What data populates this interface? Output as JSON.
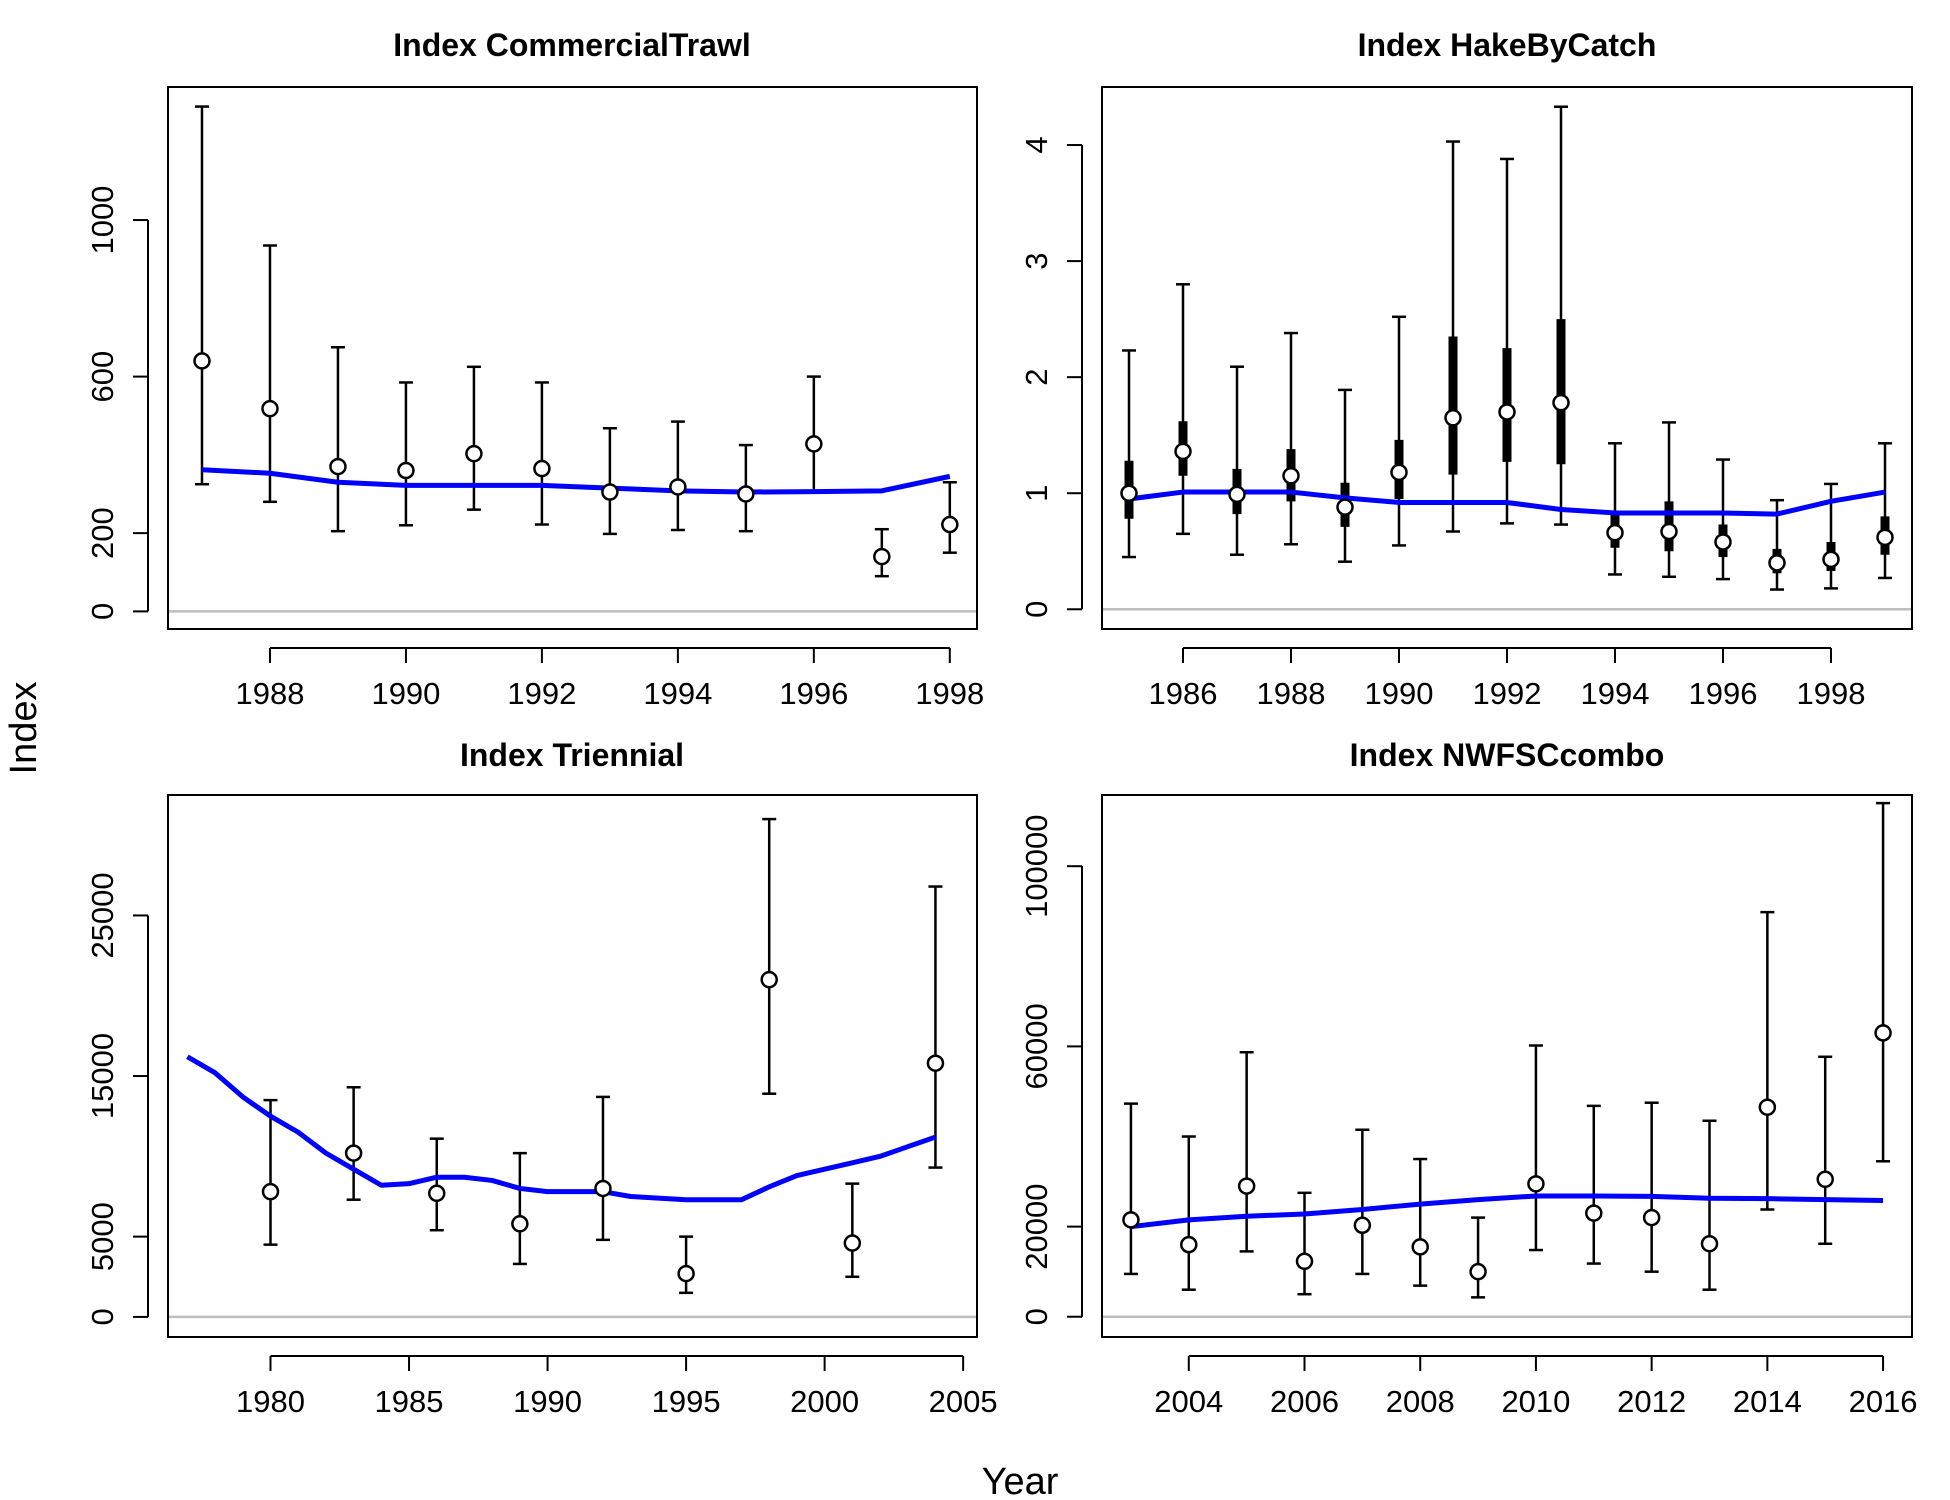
{
  "figure": {
    "ylabel": "Index",
    "xlabel": "Year"
  },
  "chart_data": [
    {
      "type": "scatter",
      "title": "Index CommercialTrawl",
      "xticks": [
        1988,
        1990,
        1992,
        1994,
        1996,
        1998
      ],
      "yticks": [
        0,
        200,
        600,
        1000
      ],
      "xlim": [
        1986.5,
        1998.4
      ],
      "ylim": [
        -45,
        1340
      ],
      "observed": {
        "x": [
          1987,
          1988,
          1989,
          1990,
          1991,
          1992,
          1993,
          1994,
          1995,
          1996,
          1997,
          1998
        ],
        "y": [
          640,
          518,
          370,
          360,
          403,
          365,
          305,
          318,
          300,
          428,
          140,
          222
        ],
        "lower": [
          325,
          280,
          205,
          220,
          260,
          222,
          198,
          208,
          205,
          305,
          90,
          150
        ],
        "upper": [
          1290,
          935,
          675,
          585,
          625,
          585,
          468,
          485,
          425,
          600,
          210,
          330
        ]
      },
      "expected": {
        "x": [
          1987,
          1988,
          1989,
          1990,
          1991,
          1992,
          1993,
          1994,
          1995,
          1996,
          1997,
          1998
        ],
        "y": [
          362,
          353,
          330,
          322,
          322,
          322,
          315,
          308,
          305,
          306,
          308,
          345
        ]
      },
      "colors": {
        "expected": "#0000ff",
        "zero_line": "#bebebe"
      }
    },
    {
      "type": "scatter",
      "title": "Index HakeByCatch",
      "xticks": [
        1986,
        1988,
        1990,
        1992,
        1994,
        1996,
        1998
      ],
      "yticks": [
        0,
        1,
        2,
        3,
        4
      ],
      "xlim": [
        1984.5,
        1999.5
      ],
      "ylim": [
        -0.17,
        4.5
      ],
      "observed": {
        "x": [
          1985,
          1986,
          1987,
          1988,
          1989,
          1990,
          1991,
          1992,
          1993,
          1994,
          1995,
          1996,
          1997,
          1998,
          1999
        ],
        "y": [
          1.0,
          1.36,
          0.99,
          1.15,
          0.88,
          1.18,
          1.65,
          1.7,
          1.78,
          0.66,
          0.67,
          0.58,
          0.4,
          0.43,
          0.62
        ],
        "lower": [
          0.45,
          0.65,
          0.47,
          0.56,
          0.41,
          0.55,
          0.67,
          0.74,
          0.73,
          0.3,
          0.28,
          0.26,
          0.17,
          0.18,
          0.27
        ],
        "upper": [
          2.23,
          2.8,
          2.09,
          2.38,
          1.89,
          2.52,
          4.03,
          3.88,
          4.33,
          1.43,
          1.61,
          1.29,
          0.94,
          1.08,
          1.43
        ],
        "inner_lower": [
          0.78,
          1.15,
          0.82,
          0.93,
          0.71,
          0.95,
          1.16,
          1.27,
          1.25,
          0.53,
          0.5,
          0.45,
          0.31,
          0.33,
          0.47
        ],
        "inner_upper": [
          1.28,
          1.62,
          1.21,
          1.38,
          1.09,
          1.46,
          2.35,
          2.25,
          2.5,
          0.82,
          0.93,
          0.73,
          0.52,
          0.58,
          0.8
        ]
      },
      "expected": {
        "x": [
          1985,
          1986,
          1987,
          1988,
          1989,
          1990,
          1991,
          1992,
          1993,
          1994,
          1995,
          1996,
          1997,
          1998,
          1999
        ],
        "y": [
          0.95,
          1.01,
          1.01,
          1.01,
          0.96,
          0.92,
          0.92,
          0.92,
          0.86,
          0.83,
          0.83,
          0.83,
          0.82,
          0.93,
          1.01
        ]
      },
      "colors": {
        "expected": "#0000ff",
        "zero_line": "#bebebe"
      }
    },
    {
      "type": "scatter",
      "title": "Index Triennial",
      "xticks": [
        1980,
        1985,
        1990,
        1995,
        2000,
        2005
      ],
      "yticks": [
        0,
        5000,
        15000,
        25000
      ],
      "xlim": [
        1976.3,
        2005.5
      ],
      "ylim": [
        -1250,
        32500
      ],
      "observed": {
        "x": [
          1980,
          1983,
          1986,
          1989,
          1992,
          1995,
          1998,
          2001,
          2004
        ],
        "y": [
          7800,
          10200,
          7700,
          5800,
          8000,
          2700,
          21000,
          4600,
          15800
        ],
        "lower": [
          4500,
          7300,
          5400,
          3300,
          4800,
          1500,
          13900,
          2500,
          9300
        ],
        "upper": [
          13500,
          14300,
          11100,
          10200,
          13700,
          5000,
          31000,
          8300,
          26800
        ]
      },
      "expected": {
        "x": [
          1977,
          1978,
          1979,
          1980,
          1981,
          1982,
          1983,
          1984,
          1985,
          1986,
          1987,
          1988,
          1989,
          1990,
          1991,
          1992,
          1993,
          1994,
          1995,
          1996,
          1997,
          1998,
          1999,
          2000,
          2001,
          2002,
          2003,
          2004
        ],
        "y": [
          16200,
          15200,
          13700,
          12500,
          11500,
          10200,
          9200,
          8200,
          8300,
          8700,
          8700,
          8500,
          8000,
          7800,
          7800,
          7800,
          7500,
          7400,
          7300,
          7300,
          7300,
          8100,
          8800,
          9200,
          9600,
          10000,
          10600,
          11200
        ]
      },
      "colors": {
        "expected": "#0000ff",
        "zero_line": "#bebebe"
      }
    },
    {
      "type": "scatter",
      "title": "Index NWFSCcombo",
      "xticks": [
        2004,
        2006,
        2008,
        2010,
        2012,
        2014,
        2016
      ],
      "yticks": [
        0,
        20000,
        60000,
        100000
      ],
      "xlim": [
        2002.5,
        2016.5
      ],
      "ylim": [
        -4500,
        115800
      ],
      "observed": {
        "x": [
          2003,
          2004,
          2005,
          2006,
          2007,
          2008,
          2009,
          2010,
          2011,
          2012,
          2013,
          2014,
          2015,
          2016
        ],
        "y": [
          21500,
          16000,
          29000,
          12300,
          20300,
          15500,
          10000,
          29500,
          23000,
          22000,
          16200,
          46500,
          30500,
          63000
        ],
        "lower": [
          9500,
          6000,
          14500,
          5000,
          9500,
          6900,
          4300,
          14800,
          11800,
          10000,
          6000,
          23800,
          16200,
          34500
        ],
        "upper": [
          47300,
          40000,
          58700,
          27500,
          41500,
          35000,
          22000,
          60200,
          46800,
          47500,
          43500,
          89800,
          57700,
          114000
        ]
      },
      "expected": {
        "x": [
          2003,
          2004,
          2005,
          2006,
          2007,
          2008,
          2009,
          2010,
          2011,
          2012,
          2013,
          2014,
          2015,
          2016
        ],
        "y": [
          20000,
          21500,
          22300,
          22800,
          23800,
          25000,
          26000,
          26800,
          26800,
          26700,
          26300,
          26200,
          26000,
          25800
        ]
      },
      "colors": {
        "expected": "#0000ff",
        "zero_line": "#bebebe"
      }
    }
  ]
}
